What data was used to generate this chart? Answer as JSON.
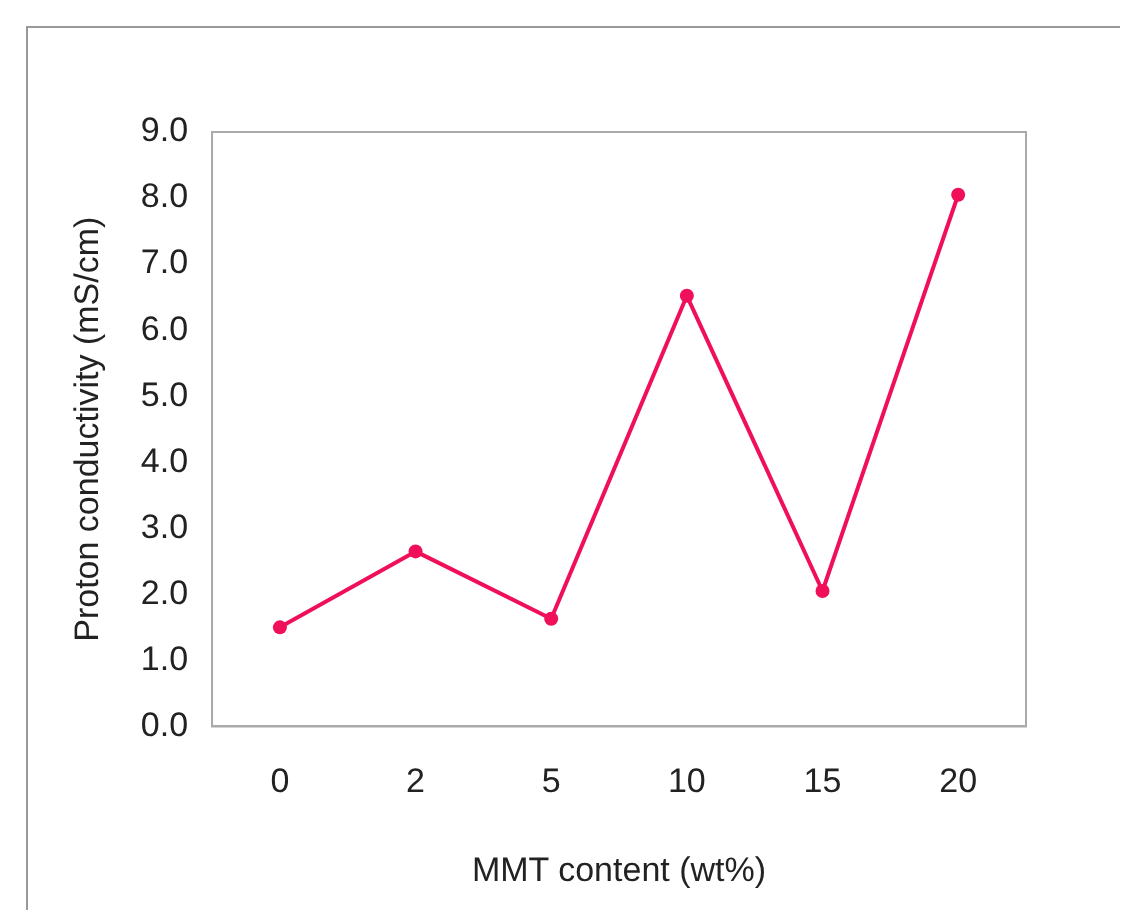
{
  "chart_data": {
    "type": "line",
    "xlabel": "MMT content (wt%)",
    "ylabel": "Proton conductivity (mS/cm)",
    "categories": [
      "0",
      "2",
      "5",
      "10",
      "15",
      "20"
    ],
    "series": [
      {
        "color": "#f0105a",
        "values": [
          1.5,
          2.65,
          1.63,
          6.52,
          2.05,
          8.05
        ]
      }
    ],
    "ylim": [
      0,
      9
    ],
    "yticks": [
      {
        "value": 0,
        "label": "0.0"
      },
      {
        "value": 1,
        "label": "1.0"
      },
      {
        "value": 2,
        "label": "2.0"
      },
      {
        "value": 3,
        "label": "3.0"
      },
      {
        "value": 4,
        "label": "4.0"
      },
      {
        "value": 5,
        "label": "5.0"
      },
      {
        "value": 6,
        "label": "6.0"
      },
      {
        "value": 7,
        "label": "7.0"
      },
      {
        "value": 8,
        "label": "8.0"
      },
      {
        "value": 9,
        "label": "9.0"
      }
    ],
    "grid": false,
    "legend": false,
    "marker": "circle",
    "line_style": "solid"
  }
}
